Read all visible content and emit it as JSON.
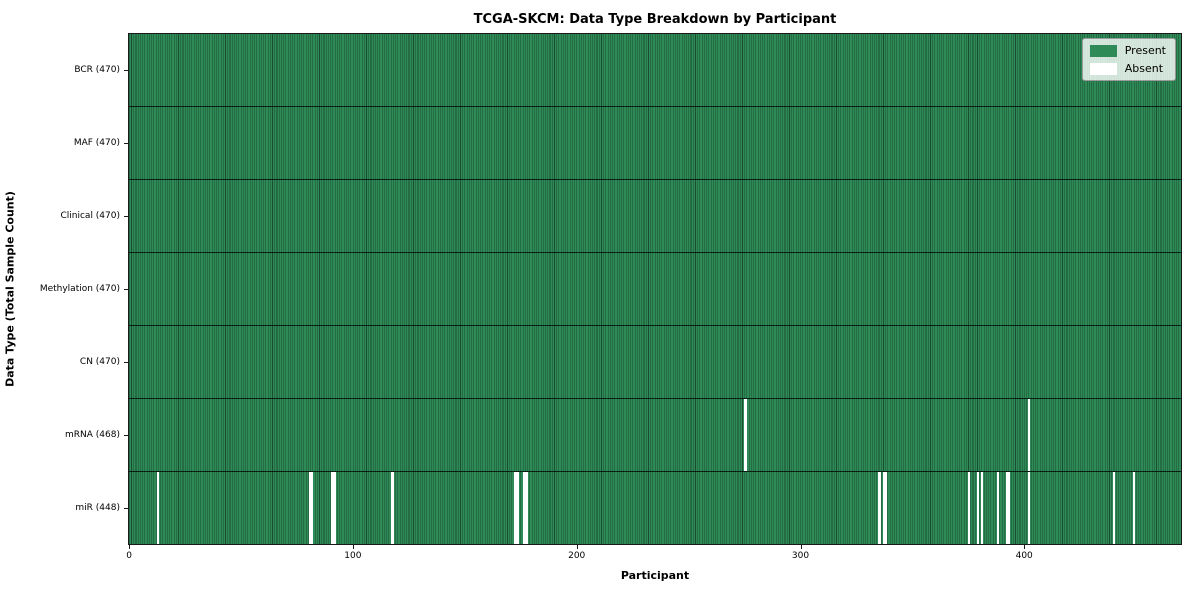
{
  "chart_data": {
    "type": "heatmap",
    "title": "TCGA-SKCM: Data Type Breakdown by Participant",
    "xlabel": "Participant",
    "ylabel": "Data Type (Total Sample Count)",
    "x_ticks": [
      0,
      100,
      200,
      300,
      400
    ],
    "x_range": [
      -0.5,
      470.5
    ],
    "n_participants": 470,
    "grid": false,
    "legend_position": "upper right",
    "legend": [
      {
        "label": "Present",
        "color": "#2e8b57"
      },
      {
        "label": "Absent",
        "color": "#ffffff"
      }
    ],
    "present_color": "#2e8b57",
    "bar_edge_color": "rgba(0,0,0,0.45)",
    "rows": [
      {
        "label": "BCR (470)",
        "data_type": "BCR",
        "total": 470,
        "absent_participants": []
      },
      {
        "label": "MAF (470)",
        "data_type": "MAF",
        "total": 470,
        "absent_participants": []
      },
      {
        "label": "Clinical (470)",
        "data_type": "Clinical",
        "total": 470,
        "absent_participants": []
      },
      {
        "label": "Methylation (470)",
        "data_type": "Methylation",
        "total": 470,
        "absent_participants": []
      },
      {
        "label": "CN (470)",
        "data_type": "CN",
        "total": 470,
        "absent_participants": []
      },
      {
        "label": "mRNA (468)",
        "data_type": "mRNA",
        "total": 468,
        "absent_participants": [
          275,
          402
        ]
      },
      {
        "label": "miR (448)",
        "data_type": "miR",
        "total": 448,
        "absent_participants": [
          12,
          80,
          81,
          90,
          91,
          117,
          172,
          173,
          176,
          177,
          335,
          337,
          338,
          375,
          379,
          381,
          388,
          392,
          393,
          402,
          440,
          449
        ]
      }
    ]
  }
}
